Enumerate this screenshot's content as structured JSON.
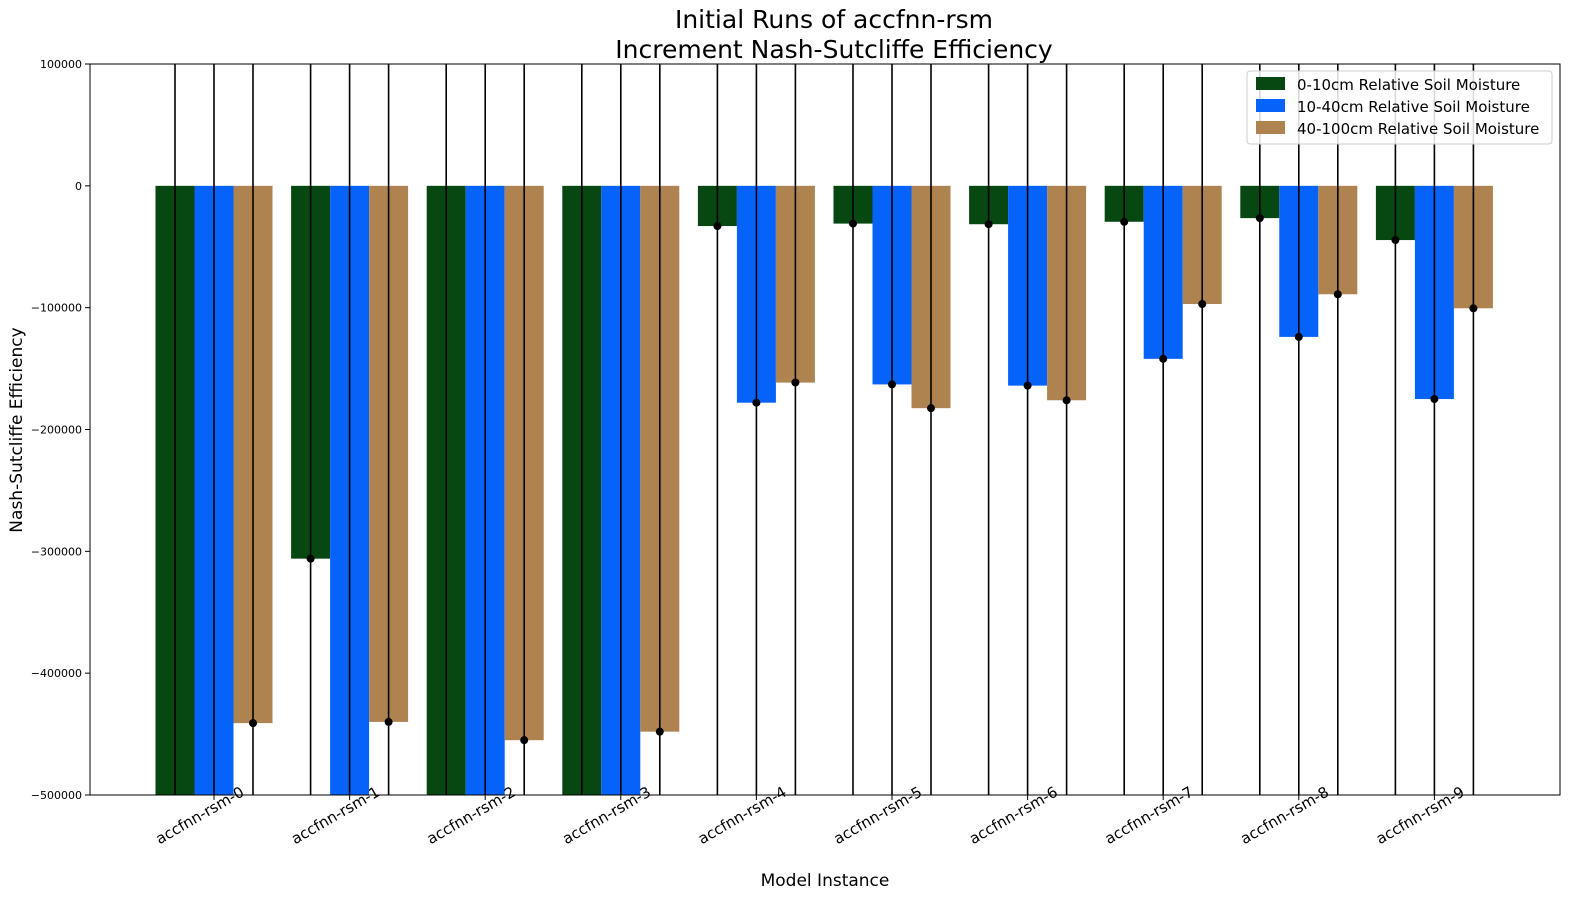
{
  "chart_data": {
    "type": "bar",
    "title": "Initial Runs of accfnn-rsm",
    "subtitle": "Increment Nash-Sutcliffe Efficiency",
    "xlabel": "Model Instance",
    "ylabel": "Nash-Sutcliffe Efficiency",
    "ylim": [
      -500000,
      100000
    ],
    "yticks": [
      100000,
      0,
      -100000,
      -200000,
      -300000,
      -400000,
      -500000
    ],
    "ytick_labels": [
      "100000",
      "0",
      "−100000",
      "−200000",
      "−300000",
      "−400000",
      "−500000"
    ],
    "categories": [
      "accfnn-rsm-0",
      "accfnn-rsm-1",
      "accfnn-rsm-2",
      "accfnn-rsm-3",
      "accfnn-rsm-4",
      "accfnn-rsm-5",
      "accfnn-rsm-6",
      "accfnn-rsm-7",
      "accfnn-rsm-8",
      "accfnn-rsm-9"
    ],
    "legend_position": "top-right",
    "grid": false,
    "error_bars": "vertical lines spanning beyond the visible axis range",
    "series": [
      {
        "name": "0-10cm Relative Soil Moisture",
        "color": "#074712",
        "values": [
          -520000,
          -306000,
          -520000,
          -520000,
          -33000,
          -31000,
          -31500,
          -29500,
          -26500,
          -44500
        ]
      },
      {
        "name": "10-40cm Relative Soil Moisture",
        "color": "#0563fa",
        "values": [
          -520000,
          -520000,
          -520000,
          -520000,
          -178000,
          -163000,
          -164000,
          -142000,
          -124000,
          -175000
        ]
      },
      {
        "name": "40-100cm Relative Soil Moisture",
        "color": "#ae8350",
        "values": [
          -441000,
          -440000,
          -455000,
          -448000,
          -161500,
          -182500,
          -176000,
          -97000,
          -89000,
          -100500
        ]
      }
    ]
  }
}
